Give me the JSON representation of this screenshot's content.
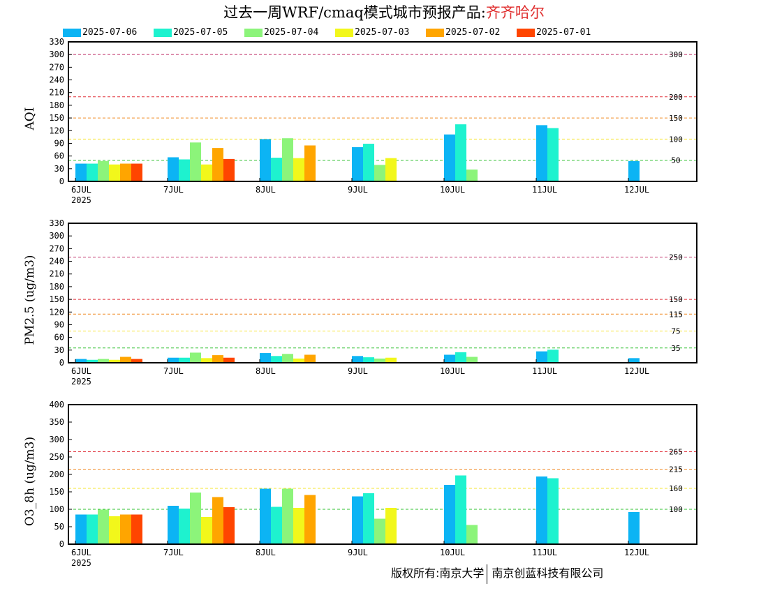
{
  "title": {
    "prefix": "过去一周WRF/cmaq模式城市预报产品:",
    "city": "齐齐哈尔"
  },
  "legend": [
    {
      "label": "2025-07-06",
      "color": "#0cb4f4"
    },
    {
      "label": "2025-07-05",
      "color": "#1ef2cf"
    },
    {
      "label": "2025-07-04",
      "color": "#8cf47a"
    },
    {
      "label": "2025-07-03",
      "color": "#f2f71b"
    },
    {
      "label": "2025-07-02",
      "color": "#ffa500"
    },
    {
      "label": "2025-07-01",
      "color": "#ff4500"
    }
  ],
  "footer": {
    "left": "版权所有:南京大学",
    "right": "南京创蓝科技有限公司"
  },
  "chart_data": [
    {
      "type": "bar",
      "ylabel": "AQI",
      "ylim": [
        0,
        330
      ],
      "yticks": [
        0,
        30,
        60,
        90,
        120,
        150,
        180,
        210,
        240,
        270,
        300,
        330
      ],
      "categories": [
        "6JUL",
        "7JUL",
        "8JUL",
        "9JUL",
        "10JUL",
        "11JUL",
        "12JUL"
      ],
      "year_label": "2025",
      "thresholds": [
        {
          "value": 300,
          "label": "300",
          "color": "#c0306a"
        },
        {
          "value": 200,
          "label": "200",
          "color": "#e0303a"
        },
        {
          "value": 150,
          "label": "150",
          "color": "#f08a24"
        },
        {
          "value": 100,
          "label": "100",
          "color": "#f5e431"
        },
        {
          "value": 50,
          "label": "50",
          "color": "#30c030"
        }
      ],
      "series": [
        {
          "name": "2025-07-06",
          "values": [
            42,
            57,
            100,
            81,
            111,
            133,
            48
          ]
        },
        {
          "name": "2025-07-05",
          "values": [
            42,
            52,
            56,
            89,
            135,
            126,
            null
          ]
        },
        {
          "name": "2025-07-04",
          "values": [
            48,
            92,
            102,
            39,
            28,
            null,
            null
          ]
        },
        {
          "name": "2025-07-03",
          "values": [
            40,
            40,
            55,
            55,
            null,
            null,
            null
          ]
        },
        {
          "name": "2025-07-02",
          "values": [
            42,
            79,
            85,
            null,
            null,
            null,
            null
          ]
        },
        {
          "name": "2025-07-01",
          "values": [
            42,
            53,
            null,
            null,
            null,
            null,
            null
          ]
        }
      ]
    },
    {
      "type": "bar",
      "ylabel": "PM2.5 (ug/m3)",
      "ylim": [
        0,
        330
      ],
      "yticks": [
        0,
        30,
        60,
        90,
        120,
        150,
        180,
        210,
        240,
        270,
        300,
        330
      ],
      "categories": [
        "6JUL",
        "7JUL",
        "8JUL",
        "9JUL",
        "10JUL",
        "11JUL",
        "12JUL"
      ],
      "year_label": "2025",
      "thresholds": [
        {
          "value": 250,
          "label": "250",
          "color": "#c0306a"
        },
        {
          "value": 150,
          "label": "150",
          "color": "#e0303a"
        },
        {
          "value": 115,
          "label": "115",
          "color": "#f08a24"
        },
        {
          "value": 75,
          "label": "75",
          "color": "#f5e431"
        },
        {
          "value": 35,
          "label": "35",
          "color": "#30c030"
        }
      ],
      "series": [
        {
          "name": "2025-07-06",
          "values": [
            9,
            12,
            23,
            16,
            19,
            27,
            11
          ]
        },
        {
          "name": "2025-07-05",
          "values": [
            7,
            12,
            16,
            13,
            25,
            31,
            null
          ]
        },
        {
          "name": "2025-07-04",
          "values": [
            9,
            24,
            21,
            10,
            14,
            null,
            null
          ]
        },
        {
          "name": "2025-07-03",
          "values": [
            7,
            11,
            10,
            12,
            null,
            null,
            null
          ]
        },
        {
          "name": "2025-07-02",
          "values": [
            14,
            18,
            19,
            null,
            null,
            null,
            null
          ]
        },
        {
          "name": "2025-07-01",
          "values": [
            9,
            12,
            null,
            null,
            null,
            null,
            null
          ]
        }
      ]
    },
    {
      "type": "bar",
      "ylabel": "O3_8h (ug/m3)",
      "ylim": [
        0,
        400
      ],
      "yticks": [
        0,
        50,
        100,
        150,
        200,
        250,
        300,
        350,
        400
      ],
      "categories": [
        "6JUL",
        "7JUL",
        "8JUL",
        "9JUL",
        "10JUL",
        "11JUL",
        "12JUL"
      ],
      "year_label": "2025",
      "thresholds": [
        {
          "value": 265,
          "label": "265",
          "color": "#e0303a"
        },
        {
          "value": 215,
          "label": "215",
          "color": "#f08a24"
        },
        {
          "value": 160,
          "label": "160",
          "color": "#f5e431"
        },
        {
          "value": 100,
          "label": "100",
          "color": "#30c030"
        }
      ],
      "series": [
        {
          "name": "2025-07-06",
          "values": [
            85,
            110,
            159,
            137,
            170,
            194,
            92
          ]
        },
        {
          "name": "2025-07-05",
          "values": [
            85,
            102,
            107,
            146,
            197,
            189,
            null
          ]
        },
        {
          "name": "2025-07-04",
          "values": [
            99,
            148,
            159,
            73,
            55,
            null,
            null
          ]
        },
        {
          "name": "2025-07-03",
          "values": [
            80,
            78,
            104,
            104,
            null,
            null,
            null
          ]
        },
        {
          "name": "2025-07-02",
          "values": [
            85,
            135,
            141,
            null,
            null,
            null,
            null
          ]
        },
        {
          "name": "2025-07-01",
          "values": [
            85,
            106,
            null,
            null,
            null,
            null,
            null
          ]
        }
      ]
    }
  ]
}
